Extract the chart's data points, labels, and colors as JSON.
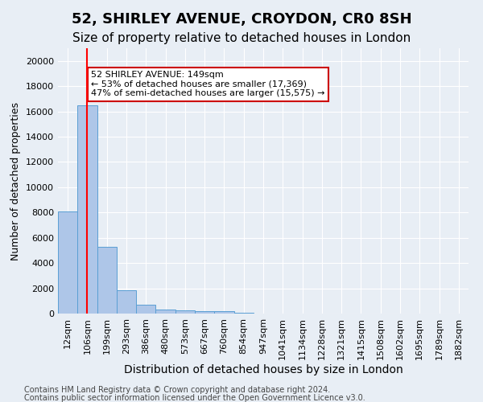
{
  "title": "52, SHIRLEY AVENUE, CROYDON, CR0 8SH",
  "subtitle": "Size of property relative to detached houses in London",
  "xlabel": "Distribution of detached houses by size in London",
  "ylabel": "Number of detached properties",
  "categories": [
    "12sqm",
    "106sqm",
    "199sqm",
    "293sqm",
    "386sqm",
    "480sqm",
    "573sqm",
    "667sqm",
    "760sqm",
    "854sqm",
    "947sqm",
    "1041sqm",
    "1134sqm",
    "1228sqm",
    "1321sqm",
    "1415sqm",
    "1508sqm",
    "1602sqm",
    "1695sqm",
    "1789sqm",
    "1882sqm"
  ],
  "values": [
    8100,
    16500,
    5300,
    1850,
    700,
    350,
    280,
    200,
    200,
    80,
    0,
    0,
    0,
    0,
    0,
    0,
    0,
    0,
    0,
    0,
    0
  ],
  "bar_color": "#aec6e8",
  "bar_edge_color": "#5a9fd4",
  "red_line_x": 1,
  "red_line_label": "149sqm",
  "property_sqm": 149,
  "annotation_text": "52 SHIRLEY AVENUE: 149sqm\n← 53% of detached houses are smaller (17,369)\n47% of semi-detached houses are larger (15,575) →",
  "annotation_box_color": "#ffffff",
  "annotation_box_edge": "#cc0000",
  "ylim": [
    0,
    21000
  ],
  "yticks": [
    0,
    2000,
    4000,
    6000,
    8000,
    10000,
    12000,
    14000,
    16000,
    18000,
    20000
  ],
  "bg_color": "#e8eef5",
  "plot_bg_color": "#e8eef5",
  "grid_color": "#ffffff",
  "footer_line1": "Contains HM Land Registry data © Crown copyright and database right 2024.",
  "footer_line2": "Contains public sector information licensed under the Open Government Licence v3.0.",
  "title_fontsize": 13,
  "subtitle_fontsize": 11,
  "tick_fontsize": 8,
  "ylabel_fontsize": 9,
  "xlabel_fontsize": 10
}
